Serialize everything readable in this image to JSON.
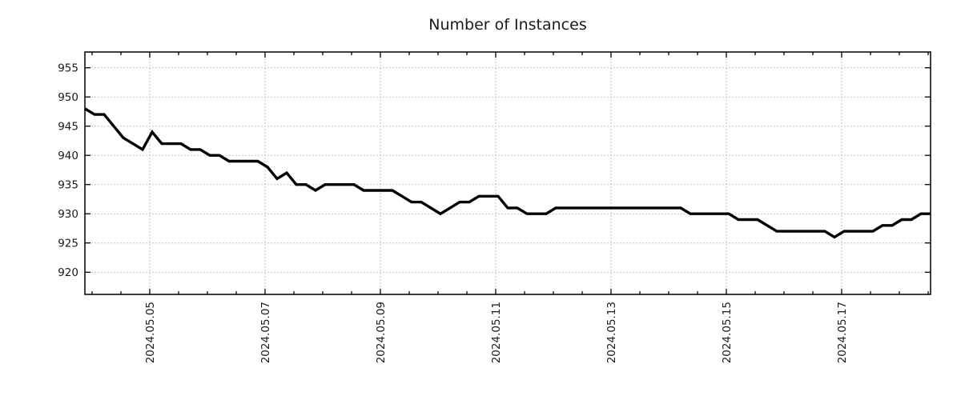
{
  "page": {
    "background_color": "#ffffff"
  },
  "chart_data": {
    "type": "line",
    "title": "Number of Instances",
    "series_name": "instances",
    "x_start": "2024-05-03 21:00",
    "x_interval_hours": 4,
    "values": [
      948,
      947,
      947,
      945,
      943,
      942,
      941,
      944,
      942,
      942,
      942,
      941,
      941,
      940,
      940,
      939,
      939,
      939,
      939,
      938,
      936,
      937,
      935,
      935,
      934,
      935,
      935,
      935,
      935,
      934,
      934,
      934,
      934,
      933,
      932,
      932,
      931,
      930,
      931,
      932,
      932,
      933,
      933,
      933,
      931,
      931,
      930,
      930,
      930,
      931,
      931,
      931,
      931,
      931,
      931,
      931,
      931,
      931,
      931,
      931,
      931,
      931,
      931,
      930,
      930,
      930,
      930,
      930,
      929,
      929,
      929,
      928,
      927,
      927,
      927,
      927,
      927,
      927,
      926,
      927,
      927,
      927,
      927,
      928,
      928,
      929,
      929,
      930,
      930
    ],
    "x_major_ticks": [
      {
        "t": 27,
        "label": "2024.05.05"
      },
      {
        "t": 75,
        "label": "2024.05.07"
      },
      {
        "t": 123,
        "label": "2024.05.09"
      },
      {
        "t": 171,
        "label": "2024.05.11"
      },
      {
        "t": 219,
        "label": "2024.05.13"
      },
      {
        "t": 267,
        "label": "2024.05.15"
      },
      {
        "t": 315,
        "label": "2024.05.17"
      }
    ],
    "x_minor_tick_start_hours": 3,
    "x_minor_tick_every_hours": 12,
    "xlim_hours": [
      0,
      352
    ],
    "y_ticks": [
      955,
      950,
      945,
      940,
      935,
      930,
      925,
      920
    ],
    "ylim": [
      916.2,
      957.7
    ],
    "grid": "dotted",
    "legend": "none",
    "line_color": "#000000",
    "line_width": 3.4,
    "grid_color": "#b3b3b3",
    "axis_color": "#000000",
    "text_color": "#1a1a1a"
  }
}
